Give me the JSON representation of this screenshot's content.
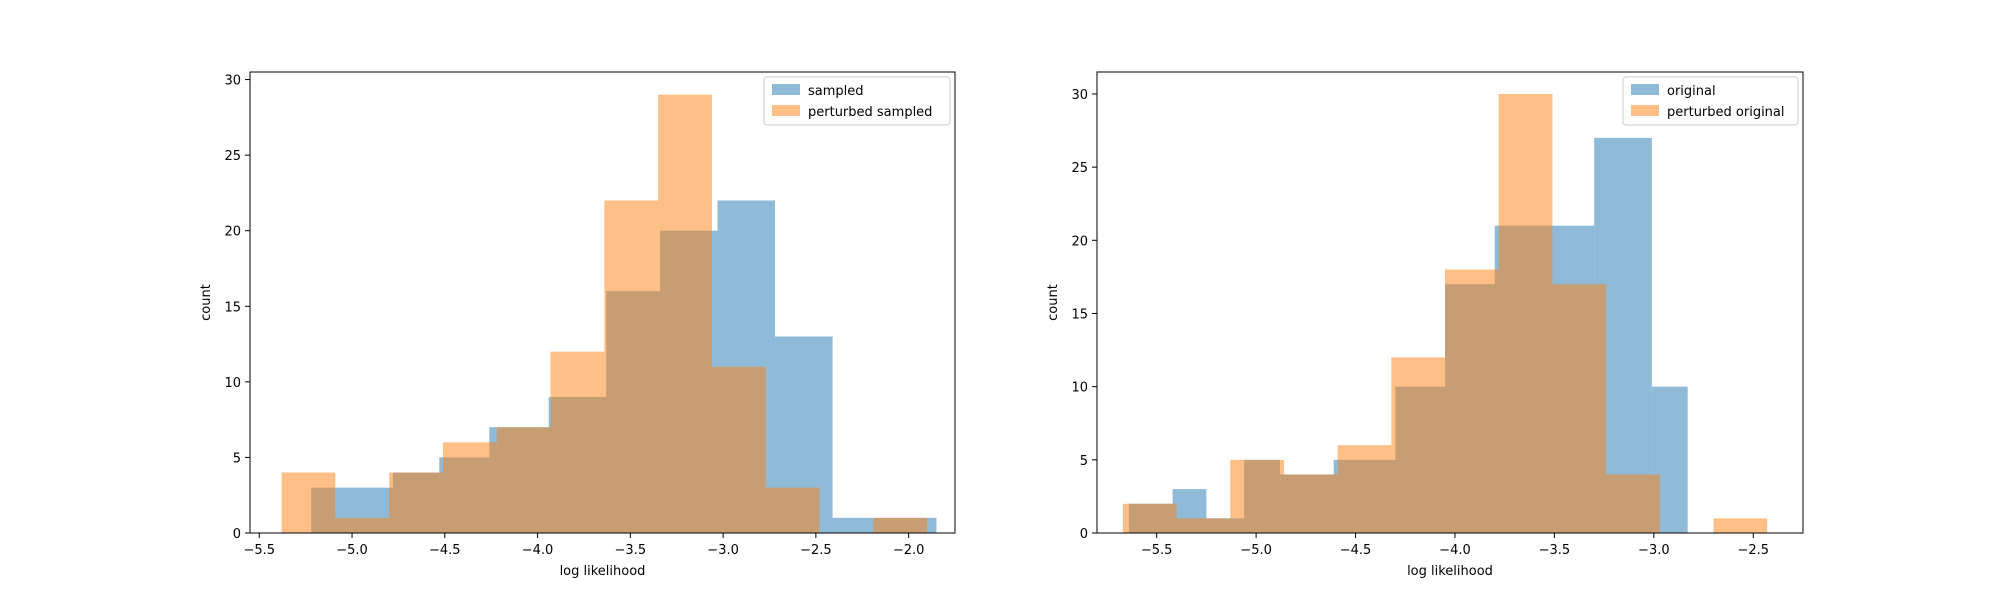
{
  "chart_data": [
    {
      "type": "bar",
      "subtype": "overlapping-histogram",
      "xlabel": "log likelihood",
      "ylabel": "count",
      "xlim": [
        -5.55,
        -1.75
      ],
      "ylim": [
        0,
        30.5
      ],
      "xticks": [
        -5.5,
        -5.0,
        -4.5,
        -4.0,
        -3.5,
        -3.0,
        -2.5,
        -2.0
      ],
      "xtick_labels": [
        "−5.5",
        "−5.0",
        "−4.5",
        "−4.0",
        "−3.5",
        "−3.0",
        "−2.5",
        "−2.0"
      ],
      "yticks": [
        0,
        5,
        10,
        15,
        20,
        25,
        30
      ],
      "ytick_labels": [
        "0",
        "5",
        "10",
        "15",
        "20",
        "25",
        "30"
      ],
      "grid": false,
      "legend_position": "top-right",
      "series": [
        {
          "name": "sampled",
          "color": "#1f77b4",
          "opacity": 0.5,
          "bin_edges": [
            -5.22,
            -5.09,
            -4.78,
            -4.53,
            -4.26,
            -4.0,
            -3.94,
            -3.63,
            -3.34,
            -3.03,
            -2.72,
            -2.41,
            -2.13,
            -1.85
          ],
          "counts": [
            3,
            3,
            4,
            5,
            7,
            7,
            9,
            16,
            20,
            22,
            13,
            1,
            1,
            1
          ]
        },
        {
          "name": "perturbed sampled",
          "color": "#ff7f0e",
          "opacity": 0.5,
          "bin_edges": [
            -5.38,
            -5.09,
            -4.8,
            -4.51,
            -4.22,
            -3.93,
            -3.64,
            -3.35,
            -3.06,
            -2.77,
            -2.48,
            -2.19,
            -1.9
          ],
          "counts": [
            4,
            1,
            4,
            6,
            7,
            12,
            22,
            29,
            11,
            3,
            0,
            1
          ]
        }
      ]
    },
    {
      "type": "bar",
      "subtype": "overlapping-histogram",
      "xlabel": "log likelihood",
      "ylabel": "count",
      "xlim": [
        -5.8,
        -2.25
      ],
      "ylim": [
        0,
        31.5
      ],
      "xticks": [
        -5.5,
        -5.0,
        -4.5,
        -4.0,
        -3.5,
        -3.0,
        -2.5
      ],
      "xtick_labels": [
        "−5.5",
        "−5.0",
        "−4.5",
        "−4.0",
        "−3.5",
        "−3.0",
        "−2.5"
      ],
      "yticks": [
        0,
        5,
        10,
        15,
        20,
        25,
        30
      ],
      "ytick_labels": [
        "0",
        "5",
        "10",
        "15",
        "20",
        "25",
        "30"
      ],
      "grid": false,
      "legend_position": "top-right",
      "series": [
        {
          "name": "original",
          "color": "#1f77b4",
          "opacity": 0.5,
          "bin_edges": [
            -5.64,
            -5.42,
            -5.25,
            -5.06,
            -4.88,
            -4.61,
            -4.3,
            -4.05,
            -3.8,
            -3.55,
            -3.3,
            -3.01,
            -2.83
          ],
          "counts": [
            2,
            3,
            1,
            5,
            4,
            5,
            10,
            17,
            21,
            21,
            27,
            10
          ]
        },
        {
          "name": "perturbed original",
          "color": "#ff7f0e",
          "opacity": 0.5,
          "bin_edges": [
            -5.67,
            -5.4,
            -5.13,
            -4.86,
            -4.59,
            -4.32,
            -4.05,
            -3.78,
            -3.51,
            -3.24,
            -2.97,
            -2.7,
            -2.43
          ],
          "counts": [
            2,
            1,
            5,
            4,
            6,
            12,
            18,
            30,
            17,
            4,
            0,
            1
          ]
        }
      ]
    }
  ]
}
